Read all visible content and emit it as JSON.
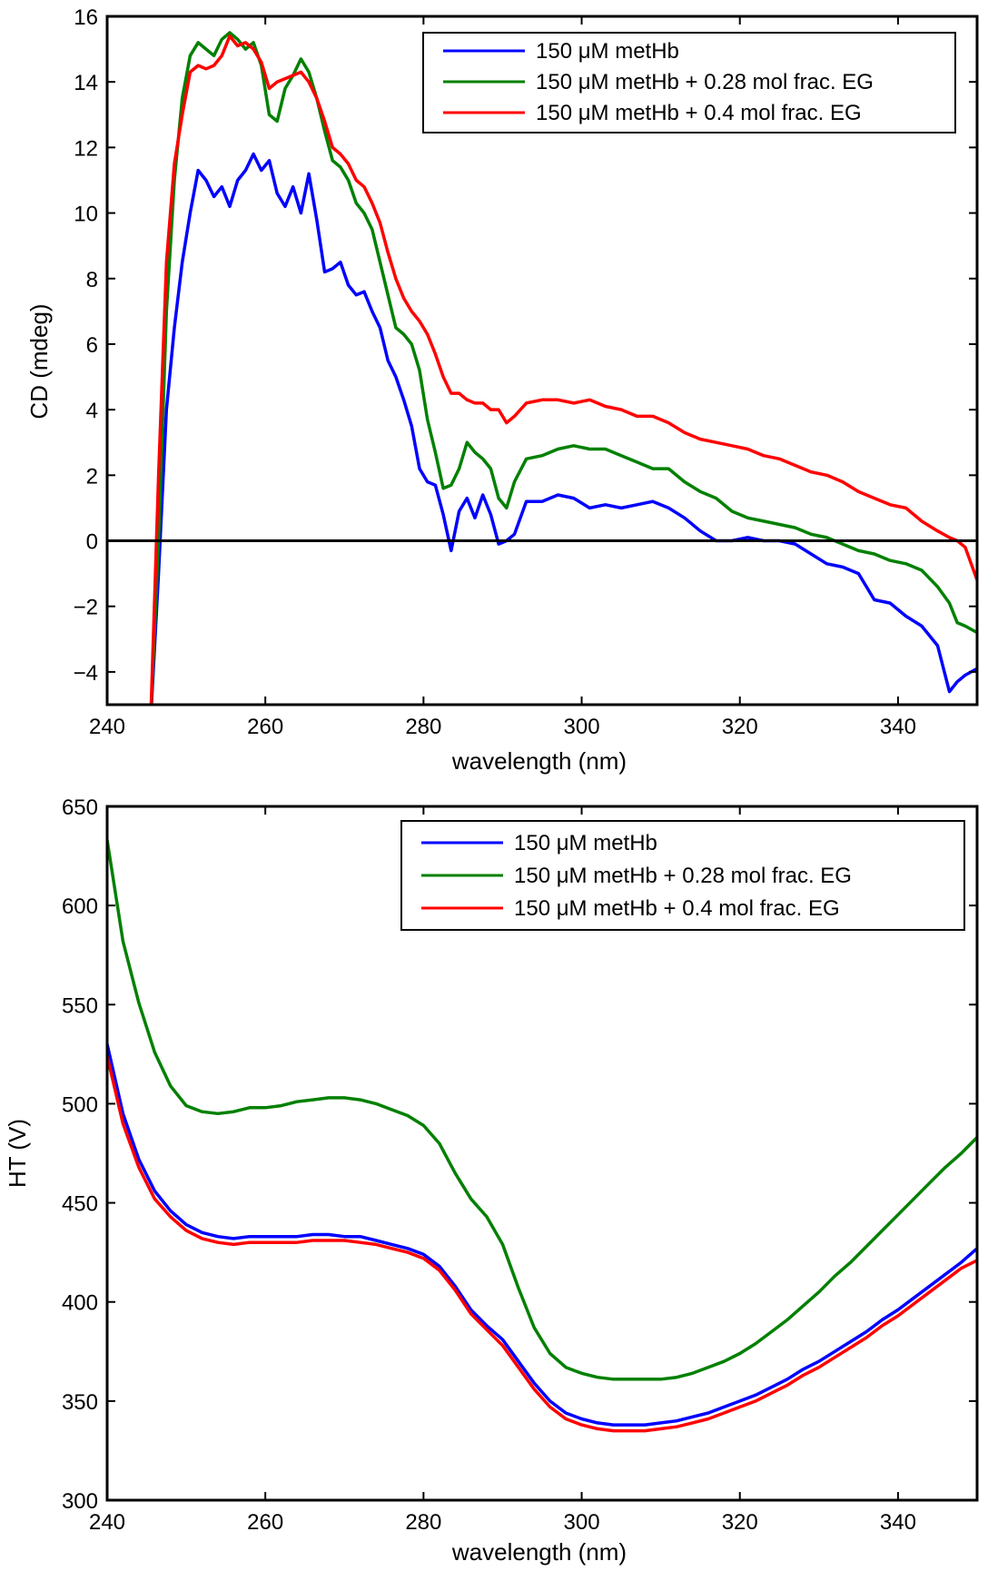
{
  "colors": {
    "series_1": "#0000ff",
    "series_2": "#008000",
    "series_3": "#ff0000",
    "axes": "#000000"
  },
  "chart_data": [
    {
      "type": "line",
      "xlabel": "wavelength (nm)",
      "ylabel": "CD (mdeg)",
      "xlim": [
        240,
        350
      ],
      "ylim": [
        -5,
        16
      ],
      "xticks": [
        240,
        260,
        280,
        300,
        320,
        340
      ],
      "yticks": [
        -4,
        -2,
        0,
        2,
        4,
        6,
        8,
        10,
        12,
        14,
        16
      ],
      "xtick_labels": [
        "240",
        "260",
        "280",
        "300",
        "320",
        "340"
      ],
      "ytick_labels": [
        "−4",
        "−2",
        "0",
        "2",
        "4",
        "6",
        "8",
        "10",
        "12",
        "14",
        "16"
      ],
      "zero_line": true,
      "grid": false,
      "legend": "top-right",
      "series": [
        {
          "name": "150 μM metHb",
          "color": "#0000ff",
          "x": [
            245.5,
            246.5,
            247.5,
            248.5,
            249.5,
            250.5,
            251.5,
            252.5,
            253.5,
            254.5,
            255.5,
            256.5,
            257.5,
            258.5,
            259.5,
            260.5,
            261.5,
            262.5,
            263.5,
            264.5,
            265.5,
            266.5,
            267.5,
            268.5,
            269.5,
            270.5,
            271.5,
            272.5,
            273.5,
            274.5,
            275.5,
            276.5,
            277.5,
            278.5,
            279.5,
            280.5,
            281.5,
            282.5,
            283.5,
            284.5,
            285.5,
            286.5,
            287.5,
            288.5,
            289.5,
            290.5,
            291.5,
            293,
            295,
            297,
            299,
            301,
            303,
            305,
            307,
            309,
            311,
            313,
            315,
            317,
            319,
            321,
            323,
            325,
            327,
            329,
            331,
            333,
            335,
            337,
            339,
            341,
            343,
            345,
            346.5,
            347.5,
            348.5,
            350
          ],
          "y": [
            -5.5,
            -1,
            4,
            6.5,
            8.5,
            10,
            11.3,
            11,
            10.5,
            10.8,
            10.2,
            11,
            11.3,
            11.8,
            11.3,
            11.6,
            10.6,
            10.2,
            10.8,
            10,
            11.2,
            9.8,
            8.2,
            8.3,
            8.5,
            7.8,
            7.5,
            7.6,
            7,
            6.5,
            5.5,
            5,
            4.3,
            3.5,
            2.2,
            1.8,
            1.7,
            0.8,
            -0.3,
            0.9,
            1.3,
            0.7,
            1.4,
            0.8,
            -0.1,
            0,
            0.2,
            1.2,
            1.2,
            1.4,
            1.3,
            1,
            1.1,
            1,
            1.1,
            1.2,
            1,
            0.7,
            0.3,
            0,
            0,
            0.1,
            0,
            0,
            -0.1,
            -0.4,
            -0.7,
            -0.8,
            -1,
            -1.8,
            -1.9,
            -2.3,
            -2.6,
            -3.2,
            -4.6,
            -4.3,
            -4.1,
            -3.9
          ]
        },
        {
          "name": "150 μM metHb + 0.28 mol frac. EG",
          "color": "#008000",
          "x": [
            245.5,
            246.5,
            247.5,
            248.5,
            249.5,
            250.5,
            251.5,
            252.5,
            253.5,
            254.5,
            255.5,
            256.5,
            257.5,
            258.5,
            259.5,
            260.5,
            261.5,
            262.5,
            263.5,
            264.5,
            265.5,
            266.5,
            267.5,
            268.5,
            269.5,
            270.5,
            271.5,
            272.5,
            273.5,
            274.5,
            275.5,
            276.5,
            277.5,
            278.5,
            279.5,
            280.5,
            281.5,
            282.5,
            283.5,
            284.5,
            285.5,
            286.5,
            287.5,
            288.5,
            289.5,
            290.5,
            291.5,
            293,
            295,
            297,
            299,
            301,
            303,
            305,
            307,
            309,
            311,
            313,
            315,
            317,
            319,
            321,
            323,
            325,
            327,
            329,
            331,
            333,
            335,
            337,
            339,
            341,
            343,
            345,
            346.5,
            347.5,
            348.5,
            350
          ],
          "y": [
            -5.5,
            0,
            7,
            11,
            13.5,
            14.8,
            15.2,
            15,
            14.8,
            15.3,
            15.5,
            15.3,
            15,
            15.2,
            14.5,
            13,
            12.8,
            13.8,
            14.2,
            14.7,
            14.3,
            13.5,
            12.5,
            11.6,
            11.4,
            11,
            10.3,
            10,
            9.5,
            8.5,
            7.5,
            6.5,
            6.3,
            6,
            5.2,
            3.7,
            2.7,
            1.6,
            1.7,
            2.2,
            3,
            2.7,
            2.5,
            2.2,
            1.3,
            1,
            1.8,
            2.5,
            2.6,
            2.8,
            2.9,
            2.8,
            2.8,
            2.6,
            2.4,
            2.2,
            2.2,
            1.8,
            1.5,
            1.3,
            0.9,
            0.7,
            0.6,
            0.5,
            0.4,
            0.2,
            0.1,
            -0.1,
            -0.3,
            -0.4,
            -0.6,
            -0.7,
            -0.9,
            -1.4,
            -1.9,
            -2.5,
            -2.6,
            -2.8
          ]
        },
        {
          "name": "150 μM metHb + 0.4 mol frac. EG",
          "color": "#ff0000",
          "x": [
            245.5,
            246.5,
            247.5,
            248.5,
            249.5,
            250.5,
            251.5,
            252.5,
            253.5,
            254.5,
            255.5,
            256.5,
            257.5,
            258.5,
            259.5,
            260.5,
            261.5,
            262.5,
            263.5,
            264.5,
            265.5,
            266.5,
            267.5,
            268.5,
            269.5,
            270.5,
            271.5,
            272.5,
            273.5,
            274.5,
            275.5,
            276.5,
            277.5,
            278.5,
            279.5,
            280.5,
            281.5,
            282.5,
            283.5,
            284.5,
            285.5,
            286.5,
            287.5,
            288.5,
            289.5,
            290.5,
            291.5,
            293,
            295,
            297,
            299,
            301,
            303,
            305,
            307,
            309,
            311,
            313,
            315,
            317,
            319,
            321,
            323,
            325,
            327,
            329,
            331,
            333,
            335,
            337,
            339,
            341,
            343,
            345,
            346.5,
            347.5,
            348.5,
            350
          ],
          "y": [
            -5.5,
            2,
            8.5,
            11.5,
            13,
            14.3,
            14.5,
            14.4,
            14.5,
            14.8,
            15.4,
            15.1,
            15.2,
            15,
            14.6,
            13.8,
            14,
            14.1,
            14.2,
            14.3,
            14,
            13.5,
            12.8,
            12,
            11.8,
            11.5,
            11,
            10.8,
            10.3,
            9.7,
            8.8,
            8,
            7.4,
            7,
            6.7,
            6.3,
            5.7,
            5,
            4.5,
            4.5,
            4.3,
            4.2,
            4.2,
            4,
            4,
            3.6,
            3.8,
            4.2,
            4.3,
            4.3,
            4.2,
            4.3,
            4.1,
            4,
            3.8,
            3.8,
            3.6,
            3.3,
            3.1,
            3,
            2.9,
            2.8,
            2.6,
            2.5,
            2.3,
            2.1,
            2,
            1.8,
            1.5,
            1.3,
            1.1,
            1,
            0.6,
            0.3,
            0.1,
            0,
            -0.2,
            -1.2
          ]
        }
      ]
    },
    {
      "type": "line",
      "xlabel": "wavelength (nm)",
      "ylabel": "HT (V)",
      "xlim": [
        240,
        350
      ],
      "ylim": [
        300,
        650
      ],
      "xticks": [
        240,
        260,
        280,
        300,
        320,
        340
      ],
      "yticks": [
        300,
        350,
        400,
        450,
        500,
        550,
        600,
        650
      ],
      "xtick_labels": [
        "240",
        "260",
        "280",
        "300",
        "320",
        "340"
      ],
      "ytick_labels": [
        "300",
        "350",
        "400",
        "450",
        "500",
        "550",
        "600",
        "650"
      ],
      "zero_line": false,
      "grid": false,
      "legend": "top-right",
      "series": [
        {
          "name": "150 μM metHb",
          "color": "#0000ff",
          "x": [
            240,
            242,
            244,
            246,
            248,
            250,
            252,
            254,
            256,
            258,
            260,
            262,
            264,
            266,
            268,
            270,
            272,
            274,
            276,
            278,
            280,
            282,
            284,
            286,
            288,
            290,
            292,
            294,
            296,
            298,
            300,
            302,
            304,
            306,
            308,
            310,
            312,
            314,
            316,
            318,
            320,
            322,
            324,
            326,
            328,
            330,
            332,
            334,
            336,
            338,
            340,
            342,
            344,
            346,
            348,
            350
          ],
          "y": [
            530,
            495,
            472,
            456,
            446,
            439,
            435,
            433,
            432,
            433,
            433,
            433,
            433,
            434,
            434,
            433,
            433,
            431,
            429,
            427,
            424,
            418,
            408,
            396,
            388,
            381,
            370,
            359,
            350,
            344,
            341,
            339,
            338,
            338,
            338,
            339,
            340,
            342,
            344,
            347,
            350,
            353,
            357,
            361,
            366,
            370,
            375,
            380,
            385,
            391,
            396,
            402,
            408,
            414,
            420,
            427
          ]
        },
        {
          "name": "150 μM metHb + 0.28 mol frac. EG",
          "color": "#008000",
          "x": [
            240,
            242,
            244,
            246,
            248,
            250,
            252,
            254,
            256,
            258,
            260,
            262,
            264,
            266,
            268,
            270,
            272,
            274,
            276,
            278,
            280,
            282,
            284,
            286,
            288,
            290,
            292,
            294,
            296,
            298,
            300,
            302,
            304,
            306,
            308,
            310,
            312,
            314,
            316,
            318,
            320,
            322,
            324,
            326,
            328,
            330,
            332,
            334,
            336,
            338,
            340,
            342,
            344,
            346,
            348,
            350
          ],
          "y": [
            633,
            582,
            551,
            526,
            509,
            499,
            496,
            495,
            496,
            498,
            498,
            499,
            501,
            502,
            503,
            503,
            502,
            500,
            497,
            494,
            489,
            480,
            465,
            452,
            443,
            429,
            407,
            387,
            374,
            367,
            364,
            362,
            361,
            361,
            361,
            361,
            362,
            364,
            367,
            370,
            374,
            379,
            385,
            391,
            398,
            405,
            413,
            420,
            428,
            436,
            444,
            452,
            460,
            468,
            475,
            483
          ]
        },
        {
          "name": "150 μM metHb + 0.4 mol frac. EG",
          "color": "#ff0000",
          "x": [
            240,
            242,
            244,
            246,
            248,
            250,
            252,
            254,
            256,
            258,
            260,
            262,
            264,
            266,
            268,
            270,
            272,
            274,
            276,
            278,
            280,
            282,
            284,
            286,
            288,
            290,
            292,
            294,
            296,
            298,
            300,
            302,
            304,
            306,
            308,
            310,
            312,
            314,
            316,
            318,
            320,
            322,
            324,
            326,
            328,
            330,
            332,
            334,
            336,
            338,
            340,
            342,
            344,
            346,
            348,
            350
          ],
          "y": [
            524,
            490,
            468,
            452,
            443,
            436,
            432,
            430,
            429,
            430,
            430,
            430,
            430,
            431,
            431,
            431,
            430,
            429,
            427,
            425,
            422,
            416,
            406,
            394,
            386,
            378,
            367,
            356,
            347,
            341,
            338,
            336,
            335,
            335,
            335,
            336,
            337,
            339,
            341,
            344,
            347,
            350,
            354,
            358,
            363,
            367,
            372,
            377,
            382,
            388,
            393,
            399,
            405,
            411,
            417,
            421
          ]
        }
      ]
    }
  ]
}
